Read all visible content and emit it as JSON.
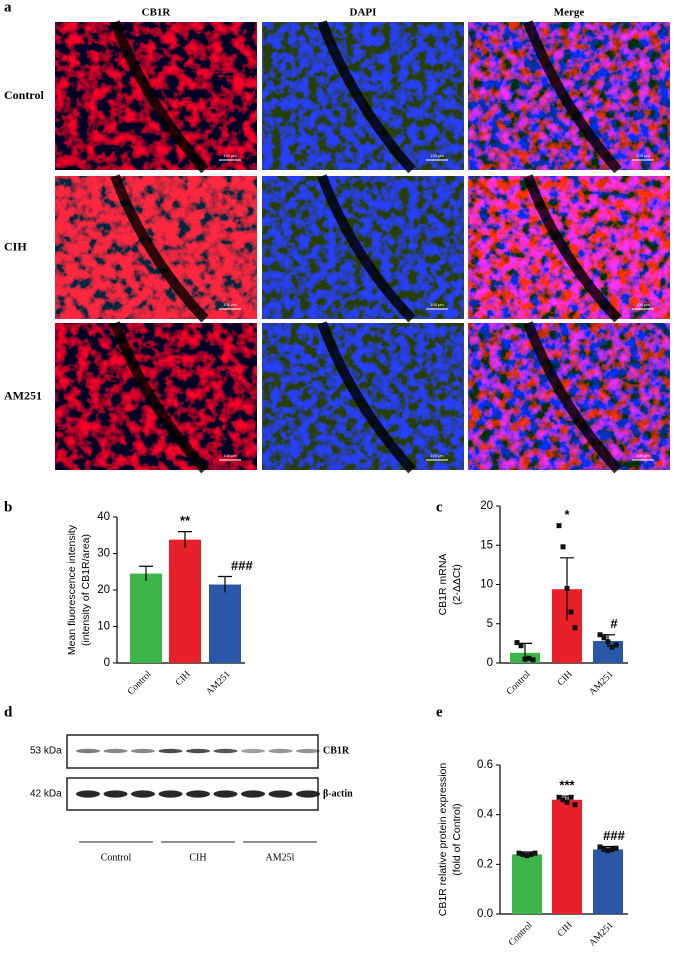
{
  "microscopy": {
    "panel": "a",
    "columns": [
      "CB1R",
      "DAPI",
      "Merge"
    ],
    "rows": [
      "Control",
      "CIH",
      "AM251"
    ],
    "scale_bar": "100 μm"
  },
  "blot": {
    "panel": "d",
    "markers": [
      "53 kDa",
      "42 kDa"
    ],
    "bands": [
      "CB1R",
      "β-actin"
    ],
    "groups": [
      "Control",
      "CIH",
      "AM25l"
    ]
  },
  "chart_data": [
    {
      "type": "bar",
      "panel": "b",
      "ylabel": [
        "Mean fluorescence intensity",
        "(intensity of CB1R/area)"
      ],
      "categories": [
        "Control",
        "CIH",
        "AM251"
      ],
      "values": [
        24.5,
        33.8,
        21.5
      ],
      "errors": [
        2,
        2.2,
        2.2
      ],
      "colors": [
        "#3db54a",
        "#e8202a",
        "#2a57a8"
      ],
      "annotations": [
        null,
        "**",
        "###"
      ],
      "ylim": [
        0,
        40
      ],
      "yticks": [
        0,
        10,
        20,
        30,
        40
      ]
    },
    {
      "type": "bar",
      "panel": "c",
      "ylabel": [
        "CB1R mRNA",
        "(2-ΔΔCt)"
      ],
      "categories": [
        "Control",
        "CIH",
        "AM251"
      ],
      "values": [
        1.3,
        9.4,
        2.8
      ],
      "errors": [
        1.2,
        4,
        0.8
      ],
      "points": [
        [
          2.6,
          2.2,
          0.5,
          0.6,
          0.4
        ],
        [
          17.5,
          14.8,
          9.5,
          6.5,
          4.5
        ],
        [
          3.6,
          3.2,
          2.7,
          2.0,
          2.3
        ]
      ],
      "colors": [
        "#3db54a",
        "#e8202a",
        "#2a57a8"
      ],
      "annotations": [
        null,
        "*",
        "#"
      ],
      "ylim": [
        0,
        20
      ],
      "yticks": [
        0,
        5,
        10,
        15,
        20
      ]
    },
    {
      "type": "bar",
      "panel": "e",
      "ylabel": [
        "CB1R relative protein expression",
        "(fold of Control)"
      ],
      "categories": [
        "Control",
        "CIH",
        "AM251"
      ],
      "values": [
        0.24,
        0.46,
        0.26
      ],
      "errors": [
        0.01,
        0.015,
        0.012
      ],
      "points": [
        [
          0.245,
          0.24,
          0.235,
          0.24,
          0.245
        ],
        [
          0.47,
          0.46,
          0.45,
          0.47,
          0.44
        ],
        [
          0.27,
          0.26,
          0.255,
          0.26,
          0.265
        ]
      ],
      "colors": [
        "#3db54a",
        "#e8202a",
        "#2a57a8"
      ],
      "annotations": [
        null,
        "***",
        "###"
      ],
      "ylim": [
        0,
        0.6
      ],
      "yticks": [
        {
          "value": 0,
          "label": "0.0"
        },
        0.2,
        0.4,
        0.6
      ]
    }
  ]
}
